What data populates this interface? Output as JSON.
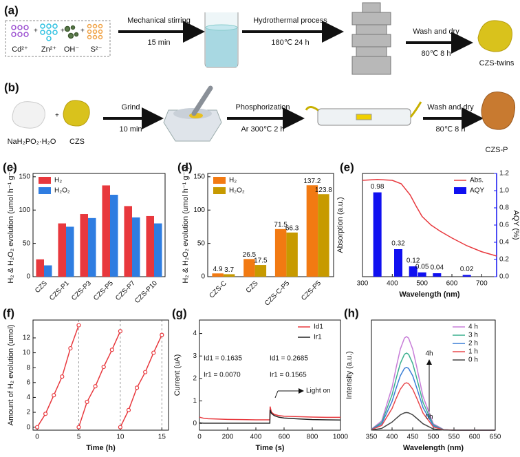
{
  "scheme_a": {
    "label": "(a)",
    "ions": [
      "Cd²⁺",
      "Zn²⁺",
      "OH⁻",
      "S²⁻"
    ],
    "steps": [
      {
        "action": "Mechanical stirring",
        "condition": "15 min"
      },
      {
        "action": "Hydrothermal process",
        "condition": "180℃  24 h"
      },
      {
        "action": "Wash and dry",
        "condition": "80℃  8 h"
      }
    ],
    "product": "CZS-twins"
  },
  "scheme_b": {
    "label": "(b)",
    "reagents": [
      "NaH₂PO₂·H₂O",
      "CZS"
    ],
    "steps": [
      {
        "action": "Grind",
        "condition": "10 min"
      },
      {
        "action": "Phosphorization",
        "condition": "Ar  300℃  2 h"
      },
      {
        "action": "Wash and dry",
        "condition": "80℃  8 h"
      }
    ],
    "product": "CZS-P"
  },
  "chart_data": [
    {
      "type": "bar",
      "label": "(c)",
      "ylabel": "H₂ & H₂O₂ evolution (umol h⁻¹ g⁻¹)",
      "categories": [
        "CZS",
        "CZS-P1",
        "CZS-P3",
        "CZS-P5",
        "CZS-P7",
        "CZS-P10"
      ],
      "series": [
        {
          "name": "H₂",
          "color": "#e8383d",
          "values": [
            26,
            80,
            94,
            137,
            106,
            91
          ]
        },
        {
          "name": "H₂O₂",
          "color": "#2f7de1",
          "values": [
            17,
            75,
            88,
            123,
            89,
            80
          ]
        }
      ],
      "ylim": [
        0,
        155
      ],
      "yticks": [
        0,
        50,
        100,
        150
      ],
      "legend": "upper left",
      "data_labels": false
    },
    {
      "type": "bar",
      "label": "(d)",
      "ylabel": "H₂ & H₂O₂ evolution (umol h⁻¹ g⁻¹)",
      "categories": [
        "CZS-C",
        "CZS",
        "CZS-C-P5",
        "CZS-P5"
      ],
      "series": [
        {
          "name": "H₂",
          "color": "#f27a12",
          "values": [
            4.9,
            26.5,
            71.5,
            137.2
          ]
        },
        {
          "name": "H₂O₂",
          "color": "#c79a00",
          "values": [
            3.7,
            17.5,
            66.3,
            123.8
          ]
        }
      ],
      "ylim": [
        0,
        155
      ],
      "yticks": [
        0,
        50,
        100,
        150
      ],
      "legend": "upper left",
      "data_labels": true
    },
    {
      "type": "combo",
      "label": "(e)",
      "xlabel": "Wavelength (nm)",
      "ylabel": "Absorption (a.u.)",
      "y2label": "AQY (%)",
      "xlim": [
        300,
        750
      ],
      "xticks": [
        300,
        400,
        500,
        600,
        700
      ],
      "ylim": [
        0,
        1.2
      ],
      "y2lim": [
        0,
        1.2
      ],
      "y2ticks": [
        {
          "value": 0,
          "label": "0.0"
        },
        0.2,
        0.4,
        0.6,
        0.8,
        {
          "value": 1,
          "label": "1.0"
        },
        1.2
      ],
      "series": [
        {
          "name": "Abs.",
          "color": "#e8383d",
          "type": "line",
          "x": [
            300,
            350,
            400,
            430,
            460,
            480,
            500,
            530,
            560,
            600,
            650,
            700,
            750
          ],
          "values": [
            1.12,
            1.13,
            1.12,
            1.08,
            0.95,
            0.82,
            0.7,
            0.6,
            0.53,
            0.45,
            0.36,
            0.29,
            0.24
          ]
        },
        {
          "name": "AQY",
          "color": "#1010f0",
          "type": "bar",
          "axis": "y2",
          "x": [
            350,
            420,
            470,
            500,
            550,
            650
          ],
          "values": [
            0.98,
            0.32,
            0.12,
            0.05,
            0.04,
            0.02
          ]
        }
      ],
      "legend": "upper right",
      "data_labels": true
    },
    {
      "type": "line",
      "label": "(f)",
      "xlabel": "Time (h)",
      "ylabel": "Amount of H₂ evolution (umol)",
      "xlim": [
        -0.5,
        15.8
      ],
      "xticks": [
        0,
        5,
        10,
        15
      ],
      "ylim": [
        -0.4,
        14.4
      ],
      "yticks": [
        0,
        2,
        4,
        6,
        8,
        10,
        12
      ],
      "series": [
        {
          "color": "#e8383d",
          "x": [
            0,
            1,
            2,
            3,
            4,
            5
          ],
          "values": [
            0,
            1.8,
            4.3,
            6.8,
            10.6,
            13.7
          ]
        },
        {
          "color": "#e8383d",
          "x": [
            5,
            6,
            7,
            8,
            9,
            10
          ],
          "values": [
            0,
            3.4,
            5.5,
            8.1,
            10.4,
            12.9
          ]
        },
        {
          "color": "#e8383d",
          "x": [
            10,
            11,
            12,
            13,
            14,
            15
          ],
          "values": [
            0,
            2.3,
            5.3,
            7.4,
            10,
            12.4
          ]
        }
      ],
      "markers": true,
      "cycle_lines": true
    },
    {
      "type": "line",
      "label": "(g)",
      "xlabel": "Time (s)",
      "ylabel": "Current (uA)",
      "xlim": [
        0,
        1000
      ],
      "xticks": [
        0,
        200,
        400,
        600,
        800,
        1000
      ],
      "ylim": [
        -0.3,
        4.6
      ],
      "yticks": [
        0,
        1,
        2,
        3,
        4
      ],
      "x": [
        0,
        10,
        30,
        60,
        100,
        200,
        300,
        400,
        499,
        501,
        510,
        530,
        560,
        600,
        700,
        800,
        900,
        1000
      ],
      "series": [
        {
          "name": "Id1",
          "color": "#e8383d",
          "values": [
            0.28,
            0.26,
            0.23,
            0.21,
            0.2,
            0.18,
            0.17,
            0.16,
            0.16,
            0.75,
            0.5,
            0.4,
            0.35,
            0.32,
            0.3,
            0.28,
            0.27,
            0.27
          ]
        },
        {
          "name": "Ir1",
          "color": "#222222",
          "values": [
            0.03,
            0.02,
            0.01,
            0.01,
            0.01,
            0.01,
            0.01,
            0.01,
            0.01,
            0.6,
            0.45,
            0.35,
            0.28,
            0.24,
            0.2,
            0.17,
            0.16,
            0.15
          ]
        }
      ],
      "legend": "upper right",
      "annotations": [
        "Id1 = 0.1635",
        "Ir1 = 0.0070",
        "Id1 = 0.2685",
        "Ir1 = 0.1565",
        "Light on"
      ]
    },
    {
      "type": "line",
      "label": "(h)",
      "xlabel": "Wavelength (nm)",
      "ylabel": "Intensity (a.u.)",
      "xlim": [
        350,
        650
      ],
      "xticks": [
        350,
        400,
        450,
        500,
        550,
        600,
        650
      ],
      "ylim": [
        0,
        100
      ],
      "x": [
        350,
        375,
        400,
        410,
        420,
        430,
        435,
        440,
        450,
        460,
        475,
        500,
        525,
        550,
        600,
        650
      ],
      "series": [
        {
          "name": "4 h",
          "color": "#c77dd8",
          "values": [
            0.9,
            8.5,
            38.9,
            57,
            73.6,
            83.6,
            85,
            83.6,
            73.6,
            57,
            30.6,
            5.8,
            0.5,
            0,
            0,
            0
          ]
        },
        {
          "name": "3 h",
          "color": "#3bb08f",
          "values": [
            0.7,
            7,
            32.1,
            47,
            60.6,
            68.9,
            70,
            68.9,
            60.6,
            47,
            25.2,
            4.8,
            0.4,
            0,
            0,
            0
          ]
        },
        {
          "name": "2 h",
          "color": "#3c7fd6",
          "values": [
            0.6,
            5.7,
            26.1,
            38.2,
            49.4,
            56.1,
            57,
            56.1,
            49.4,
            38.2,
            20.5,
            3.9,
            0.3,
            0,
            0,
            0
          ]
        },
        {
          "name": "1 h",
          "color": "#e8484d",
          "values": [
            0.4,
            4.3,
            19.7,
            28.9,
            37.2,
            42.3,
            43,
            42.3,
            37.2,
            28.9,
            15.5,
            2.9,
            0.3,
            0,
            0,
            0
          ]
        },
        {
          "name": "0 h",
          "color": "#444444",
          "values": [
            0.2,
            1.6,
            7.3,
            10.7,
            13.9,
            15.7,
            16,
            15.7,
            13.9,
            10.7,
            5.8,
            1.1,
            0.1,
            0,
            0,
            0
          ]
        }
      ],
      "legend": "upper right",
      "annotations": [
        "4h",
        "0h"
      ]
    }
  ]
}
